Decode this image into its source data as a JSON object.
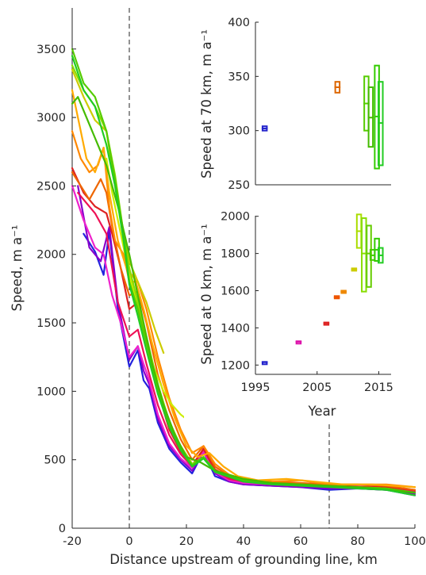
{
  "chart_data": [
    {
      "type": "line",
      "xlabel": "Distance upstream of grounding line, km",
      "ylabel": "Speed, m a⁻¹",
      "xlim": [
        -20,
        100
      ],
      "ylim": [
        0,
        3800
      ],
      "xticks": [
        "-20",
        "0",
        "20",
        "40",
        "60",
        "80",
        "100"
      ],
      "yticks": [
        "0",
        "500",
        "1000",
        "1500",
        "2000",
        "2500",
        "3000",
        "3500"
      ],
      "grid": false,
      "reference_lines_x": [
        0,
        70
      ],
      "series": [
        {
          "color": "#2222dd",
          "x": [
            -16,
            -12,
            -9,
            -7,
            -4,
            0,
            3,
            5,
            7,
            10,
            14,
            18,
            22,
            26,
            30,
            35,
            40,
            50,
            60,
            70,
            80,
            90,
            100
          ],
          "y": [
            2150,
            2020,
            1850,
            2170,
            1600,
            1180,
            1300,
            1080,
            1020,
            770,
            580,
            480,
            400,
            560,
            380,
            340,
            320,
            310,
            300,
            280,
            290,
            280,
            240
          ]
        },
        {
          "color": "#8800cc",
          "x": [
            -18,
            -14,
            -10,
            -7,
            -4,
            0,
            3,
            5,
            7,
            10,
            14,
            18,
            22,
            26,
            30,
            35,
            40,
            50,
            60,
            70,
            80,
            90,
            100
          ],
          "y": [
            2500,
            2050,
            1950,
            2200,
            1650,
            1230,
            1330,
            1150,
            1050,
            800,
            600,
            500,
            420,
            560,
            400,
            340,
            320,
            310,
            300,
            290,
            290,
            280,
            250
          ]
        },
        {
          "color": "#ee22cc",
          "x": [
            -20,
            -16,
            -12,
            -9,
            -6,
            -3,
            0,
            3,
            5,
            7,
            10,
            14,
            18,
            22,
            26,
            30,
            35,
            40,
            50,
            60,
            70,
            80,
            90,
            100
          ],
          "y": [
            2500,
            2250,
            2050,
            2000,
            1700,
            1500,
            1250,
            1330,
            1200,
            1080,
            830,
            620,
            510,
            440,
            560,
            410,
            350,
            330,
            320,
            310,
            310,
            300,
            290,
            260
          ]
        },
        {
          "color": "#ee1155",
          "x": [
            -18,
            -12,
            -8,
            -4,
            0,
            3,
            6,
            10,
            14,
            18,
            22,
            26,
            30,
            35,
            40,
            50,
            60,
            70,
            80,
            90,
            100
          ],
          "y": [
            2450,
            2300,
            2150,
            1650,
            1400,
            1450,
            1200,
            900,
            680,
            540,
            450,
            580,
            420,
            360,
            340,
            320,
            310,
            310,
            300,
            300,
            270
          ]
        },
        {
          "color": "#dd2222",
          "x": [
            -20,
            -16,
            -12,
            -8,
            -6,
            -3,
            0,
            3,
            5,
            8,
            11,
            14,
            18,
            22,
            26,
            30,
            35,
            40,
            50,
            60,
            70,
            80,
            90,
            100
          ],
          "y": [
            2630,
            2450,
            2350,
            2300,
            2150,
            1900,
            1600,
            1650,
            1450,
            1200,
            930,
            720,
            560,
            460,
            580,
            430,
            370,
            350,
            330,
            320,
            310,
            305,
            300,
            280
          ]
        },
        {
          "color": "#ee6600",
          "x": [
            -20,
            -17,
            -14,
            -10,
            -8,
            -6,
            -3,
            0,
            3,
            6,
            10,
            14,
            18,
            22,
            26,
            30,
            35,
            40,
            50,
            60,
            70,
            80,
            90,
            100
          ],
          "y": [
            2600,
            2500,
            2400,
            2550,
            2450,
            2200,
            1900,
            1700,
            1730,
            1500,
            1120,
            860,
            650,
            500,
            600,
            450,
            380,
            350,
            340,
            330,
            320,
            320,
            310,
            280
          ]
        },
        {
          "color": "#ff8800",
          "x": [
            -20,
            -17,
            -14,
            -11,
            -9,
            -7,
            -5,
            -2,
            0,
            3,
            6,
            10,
            14,
            18,
            22,
            26,
            30,
            35,
            40,
            50,
            60,
            70,
            80,
            90,
            100
          ],
          "y": [
            2900,
            2700,
            2600,
            2650,
            2780,
            2350,
            2100,
            2000,
            1800,
            1800,
            1600,
            1250,
            950,
            720,
            550,
            600,
            470,
            390,
            360,
            340,
            350,
            320,
            320,
            320,
            300
          ]
        },
        {
          "color": "#ffaa00",
          "x": [
            -20,
            -18,
            -15,
            -12,
            -9,
            -7,
            -4,
            -1,
            2,
            5,
            8,
            12,
            16,
            20,
            24,
            28,
            33,
            38,
            45,
            55,
            65,
            75,
            85,
            100
          ],
          "y": [
            3200,
            3000,
            2700,
            2600,
            2780,
            2450,
            2100,
            1900,
            1820,
            1600,
            1350,
            1050,
            800,
            600,
            520,
            550,
            450,
            380,
            350,
            360,
            340,
            320,
            320,
            300
          ]
        },
        {
          "color": "#cccc00",
          "x": [
            -20,
            -16,
            -12,
            -8,
            -5,
            -2,
            0,
            3,
            6,
            9,
            12
          ],
          "y": [
            3350,
            3150,
            2980,
            2900,
            2500,
            2150,
            1950,
            1800,
            1650,
            1450,
            1280
          ]
        },
        {
          "color": "#ccee00",
          "x": [
            -8,
            -6,
            -3,
            0,
            3,
            6,
            9,
            12,
            15,
            18,
            21
          ],
          "y": [
            2700,
            2450,
            2150,
            1850,
            1600,
            1350,
            1150,
            1000,
            900,
            830,
            780
          ]
        },
        {
          "color": "#88dd00",
          "x": [
            -20,
            -16,
            -12,
            -8,
            -5,
            -2,
            0,
            3,
            6,
            10,
            14,
            18,
            22,
            26,
            30,
            40,
            50,
            60,
            70,
            80,
            90,
            100
          ],
          "y": [
            3380,
            3200,
            3080,
            2900,
            2580,
            2150,
            1900,
            1650,
            1400,
            1050,
            780,
            600,
            470,
            520,
            420,
            360,
            330,
            320,
            310,
            300,
            290,
            260
          ]
        },
        {
          "color": "#55cc00",
          "x": [
            -20,
            -16,
            -12,
            -8,
            -5,
            -2,
            0,
            3,
            6,
            10,
            14,
            18,
            22,
            26,
            30,
            40,
            50,
            60,
            70,
            80,
            90,
            100
          ],
          "y": [
            3500,
            3250,
            3150,
            2900,
            2550,
            2150,
            1800,
            1600,
            1350,
            1000,
            760,
            580,
            460,
            520,
            420,
            350,
            330,
            320,
            310,
            300,
            290,
            260
          ]
        },
        {
          "color": "#44bb00",
          "x": [
            -20,
            -18,
            -15,
            -12,
            -8,
            -4,
            0,
            4,
            8,
            12,
            16,
            20,
            25,
            30,
            40,
            50,
            60,
            70,
            80,
            90,
            100
          ],
          "y": [
            3100,
            3150,
            3000,
            2850,
            2650,
            2350,
            2000,
            1600,
            1200,
            900,
            680,
            520,
            480,
            420,
            360,
            330,
            320,
            310,
            300,
            280,
            260
          ]
        },
        {
          "color": "#22cc22",
          "x": [
            -20,
            -16,
            -12,
            -8,
            -5,
            -2,
            0,
            3,
            6,
            10,
            14,
            18,
            22,
            26,
            30,
            40,
            50,
            60,
            70,
            80,
            90,
            100
          ],
          "y": [
            3450,
            3200,
            3080,
            2800,
            2500,
            2100,
            1780,
            1550,
            1300,
            980,
            740,
            570,
            450,
            510,
            410,
            340,
            320,
            310,
            300,
            290,
            280,
            240
          ]
        }
      ]
    },
    {
      "type": "scatter",
      "ylabel": "Speed at 70 km, m a⁻¹",
      "xlim": [
        1995,
        2017
      ],
      "ylim": [
        250,
        400
      ],
      "yticks": [
        "250",
        "300",
        "350",
        "400"
      ],
      "points": [
        {
          "x": 1996.5,
          "y": 302,
          "y_low": 300,
          "y_high": 304,
          "color": "#2222cc"
        },
        {
          "x": 2008.3,
          "y": 340,
          "y_low": 335,
          "y_high": 345,
          "color": "#dd6600"
        },
        {
          "x": 2013.0,
          "y": 325,
          "y_low": 300,
          "y_high": 350,
          "color": "#55cc00"
        },
        {
          "x": 2013.7,
          "y": 312,
          "y_low": 285,
          "y_high": 340,
          "color": "#44bb00"
        },
        {
          "x": 2014.7,
          "y": 313,
          "y_low": 265,
          "y_high": 360,
          "color": "#33cc00"
        },
        {
          "x": 2015.3,
          "y": 307,
          "y_low": 268,
          "y_high": 345,
          "color": "#22cc22"
        }
      ]
    },
    {
      "type": "scatter",
      "ylabel": "Speed at 0 km, m a⁻¹",
      "xlabel": "Year",
      "xlim": [
        1995,
        2017
      ],
      "ylim": [
        1150,
        2050
      ],
      "xticks": [
        "1995",
        "2005",
        "2015"
      ],
      "yticks": [
        "1200",
        "1400",
        "1600",
        "1800",
        "2000"
      ],
      "points": [
        {
          "x": 1996.5,
          "y": 1215,
          "y_low": 1213,
          "y_high": 1217,
          "color": "#2222cc"
        },
        {
          "x": 2002.0,
          "y": 1325,
          "y_low": 1322,
          "y_high": 1328,
          "color": "#dd11aa"
        },
        {
          "x": 2006.5,
          "y": 1425,
          "y_low": 1421,
          "y_high": 1429,
          "color": "#dd2222"
        },
        {
          "x": 2008.2,
          "y": 1565,
          "y_low": 1559,
          "y_high": 1571,
          "color": "#ee5500"
        },
        {
          "x": 2009.3,
          "y": 1595,
          "y_low": 1590,
          "y_high": 1600,
          "color": "#ee8800"
        },
        {
          "x": 2011.0,
          "y": 1715,
          "y_low": 1710,
          "y_high": 1720,
          "color": "#cccc00"
        },
        {
          "x": 2011.8,
          "y": 1920,
          "y_low": 1830,
          "y_high": 2010,
          "color": "#aadd00"
        },
        {
          "x": 2012.6,
          "y": 1800,
          "y_low": 1595,
          "y_high": 1990,
          "color": "#88dd00"
        },
        {
          "x": 2013.4,
          "y": 1800,
          "y_low": 1620,
          "y_high": 1950,
          "color": "#66cc00"
        },
        {
          "x": 2014.0,
          "y": 1790,
          "y_low": 1765,
          "y_high": 1820,
          "color": "#44cc00"
        },
        {
          "x": 2014.7,
          "y": 1820,
          "y_low": 1760,
          "y_high": 1880,
          "color": "#33cc00"
        },
        {
          "x": 2015.3,
          "y": 1790,
          "y_low": 1750,
          "y_high": 1830,
          "color": "#22cc22"
        }
      ]
    }
  ]
}
